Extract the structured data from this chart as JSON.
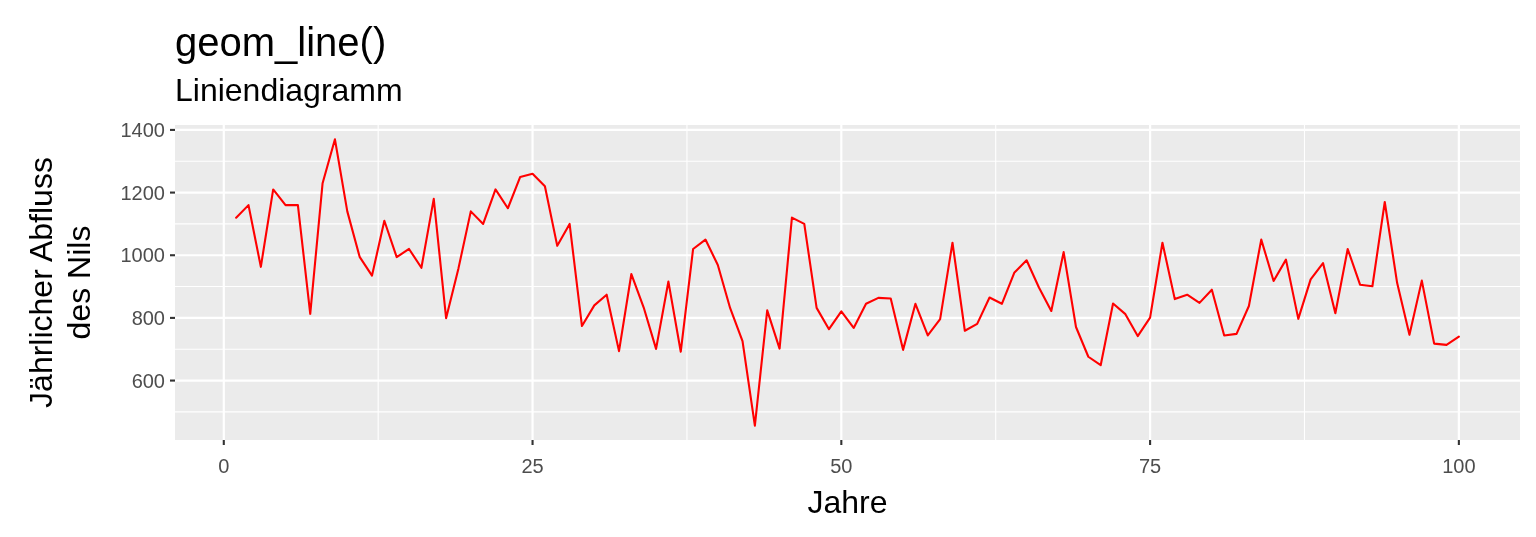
{
  "chart_data": {
    "type": "line",
    "title": "geom_line()",
    "subtitle": "Liniendiagramm",
    "xlabel": "Jahre",
    "ylabel": "Jährlicher Abfluss\ndes Nils",
    "x": [
      1,
      2,
      3,
      4,
      5,
      6,
      7,
      8,
      9,
      10,
      11,
      12,
      13,
      14,
      15,
      16,
      17,
      18,
      19,
      20,
      21,
      22,
      23,
      24,
      25,
      26,
      27,
      28,
      29,
      30,
      31,
      32,
      33,
      34,
      35,
      36,
      37,
      38,
      39,
      40,
      41,
      42,
      43,
      44,
      45,
      46,
      47,
      48,
      49,
      50,
      51,
      52,
      53,
      54,
      55,
      56,
      57,
      58,
      59,
      60,
      61,
      62,
      63,
      64,
      65,
      66,
      67,
      68,
      69,
      70,
      71,
      72,
      73,
      74,
      75,
      76,
      77,
      78,
      79,
      80,
      81,
      82,
      83,
      84,
      85,
      86,
      87,
      88,
      89,
      90,
      91,
      92,
      93,
      94,
      95,
      96,
      97,
      98,
      99,
      100
    ],
    "series": [
      {
        "color": "#ff0000",
        "values": [
          1120,
          1160,
          963,
          1210,
          1160,
          1160,
          813,
          1230,
          1370,
          1140,
          995,
          935,
          1110,
          994,
          1020,
          960,
          1180,
          799,
          958,
          1140,
          1100,
          1210,
          1150,
          1250,
          1260,
          1220,
          1030,
          1100,
          774,
          840,
          874,
          694,
          940,
          833,
          701,
          916,
          692,
          1020,
          1050,
          969,
          831,
          726,
          456,
          824,
          702,
          1120,
          1100,
          832,
          764,
          821,
          768,
          845,
          864,
          862,
          698,
          845,
          744,
          796,
          1040,
          759,
          781,
          865,
          845,
          944,
          984,
          897,
          822,
          1010,
          771,
          676,
          649,
          846,
          812,
          742,
          801,
          1040,
          860,
          874,
          848,
          890,
          744,
          749,
          838,
          1050,
          918,
          986,
          797,
          923,
          975,
          815,
          1020,
          906,
          901,
          1170,
          912,
          746,
          919,
          718,
          714,
          740
        ]
      }
    ],
    "xlim": [
      -3.95,
      104.95
    ],
    "ylim": [
      410.3,
      1415.7
    ],
    "xticks": [
      0,
      25,
      50,
      75,
      100
    ],
    "yticks": [
      600,
      800,
      1000,
      1200,
      1400
    ],
    "grid": true
  }
}
